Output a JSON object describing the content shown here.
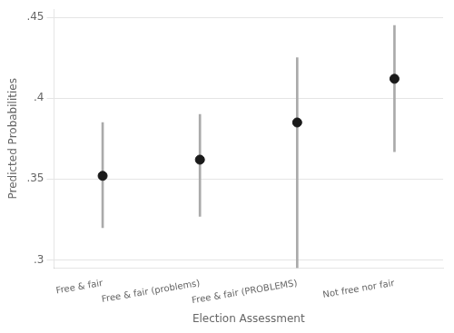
{
  "chart_data": {
    "type": "scatter",
    "xlabel": "Election Assessment",
    "ylabel": "Predicted Probabilities",
    "categories": [
      "Free & fair",
      "Free & fair (problems)",
      "Free & fair (PROBLEMS)",
      "Not free nor fair"
    ],
    "values": [
      0.352,
      0.362,
      0.385,
      0.412
    ],
    "ci_lower": [
      0.32,
      0.327,
      0.295,
      0.367
    ],
    "ci_upper": [
      0.385,
      0.39,
      0.425,
      0.445
    ],
    "color": "#1a1a1a",
    "ci_color": "#aaaaaa",
    "ylim": [
      0.295,
      0.455
    ],
    "yticks": [
      {
        "value": 0.3,
        "label": ".3"
      },
      {
        "value": 0.35,
        "label": ".35"
      },
      {
        "value": 0.4,
        "label": ".4"
      },
      {
        "value": 0.45,
        "label": ".45"
      }
    ],
    "grid": true
  }
}
